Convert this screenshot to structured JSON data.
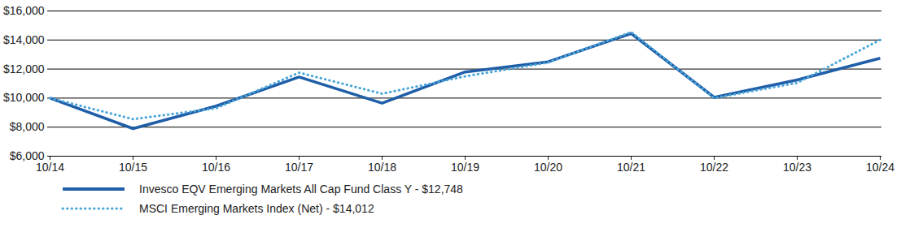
{
  "chart_data": {
    "type": "line",
    "x": [
      "10/14",
      "10/15",
      "10/16",
      "10/17",
      "10/18",
      "10/19",
      "10/20",
      "10/21",
      "10/22",
      "10/23",
      "10/24"
    ],
    "series": [
      {
        "name": "Invesco EQV Emerging Markets All Cap Fund Class Y - $12,748",
        "color": "#1f5ea8",
        "line_style": "solid",
        "values": [
          10000,
          7900,
          9450,
          11450,
          9650,
          11800,
          12500,
          14450,
          10050,
          11250,
          12748
        ]
      },
      {
        "name": "MSCI Emerging Markets Index (Net) - $14,012",
        "color": "#4aa6d9",
        "line_style": "dotted",
        "values": [
          10000,
          8550,
          9300,
          11750,
          10300,
          11500,
          12450,
          14550,
          10000,
          11050,
          14012
        ]
      }
    ],
    "ylim": [
      6000,
      16000
    ],
    "yticks": [
      {
        "value": 6000,
        "label": "$6,000"
      },
      {
        "value": 8000,
        "label": "$8,000"
      },
      {
        "value": 10000,
        "label": "$10,000"
      },
      {
        "value": 12000,
        "label": "$12,000"
      },
      {
        "value": 14000,
        "label": "$14,000"
      },
      {
        "value": 16000,
        "label": "$16,000"
      }
    ],
    "grid": true,
    "legend": "bottom"
  }
}
